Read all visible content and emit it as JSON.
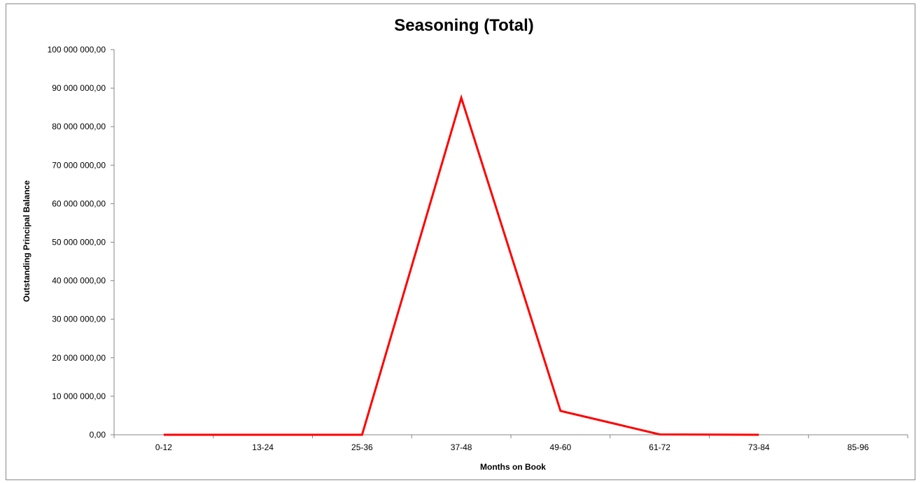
{
  "chart_data": {
    "type": "line",
    "title": "Seasoning (Total)",
    "xlabel": "Months on Book",
    "ylabel": "Outstanding Principal Balance",
    "categories": [
      "0-12",
      "13-24",
      "25-36",
      "37-48",
      "49-60",
      "61-72",
      "73-84",
      "85-96"
    ],
    "ylim": [
      0,
      100000000
    ],
    "yticks": [
      0,
      10000000,
      20000000,
      30000000,
      40000000,
      50000000,
      60000000,
      70000000,
      80000000,
      90000000,
      100000000
    ],
    "ytick_labels": [
      "0,00",
      "10 000 000,00",
      "20 000 000,00",
      "30 000 000,00",
      "40 000 000,00",
      "50 000 000,00",
      "60 000 000,00",
      "70 000 000,00",
      "80 000 000,00",
      "90 000 000,00",
      "100 000 000,00"
    ],
    "series": [
      {
        "values": [
          0,
          0,
          0,
          87500000,
          6200000,
          100000,
          0,
          null
        ],
        "color": "#ff0000"
      }
    ],
    "grid": false,
    "legend": "none"
  }
}
